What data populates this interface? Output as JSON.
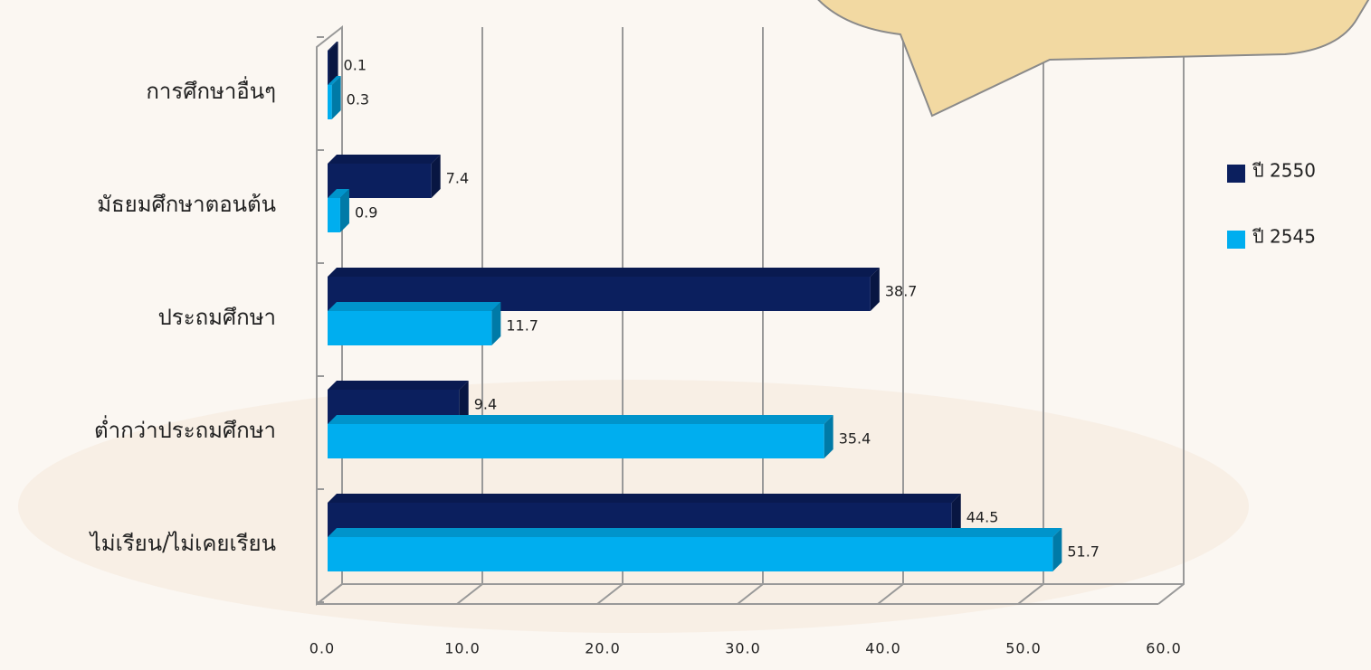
{
  "chart_data": {
    "type": "bar3d_horizontal",
    "categories": [
      "การศึกษาอื่นๆ",
      "มัธยมศึกษาตอนต้น",
      "ประถมศึกษา",
      "ต่ำกว่าประถมศึกษา",
      "ไม่เรียน/ไม่เคยเรียน"
    ],
    "series": [
      {
        "name": "ปี 2550",
        "color": "#0b1f5e",
        "values": [
          0.1,
          7.4,
          38.7,
          9.4,
          44.5
        ]
      },
      {
        "name": "ปี 2545",
        "color": "#00aeef",
        "values": [
          0.3,
          0.9,
          11.7,
          35.4,
          51.7
        ]
      }
    ],
    "xlim": [
      0,
      60
    ],
    "xticks": [
      {
        "value": 0,
        "label": "0.0"
      },
      {
        "value": 10,
        "label": "10.0"
      },
      {
        "value": 20,
        "label": "20.0"
      },
      {
        "value": 30,
        "label": "30.0"
      },
      {
        "value": 40,
        "label": "40.0"
      },
      {
        "value": 50,
        "label": "50.0"
      },
      {
        "value": 60,
        "label": "60.0"
      }
    ],
    "grid": true,
    "legend": "right"
  }
}
